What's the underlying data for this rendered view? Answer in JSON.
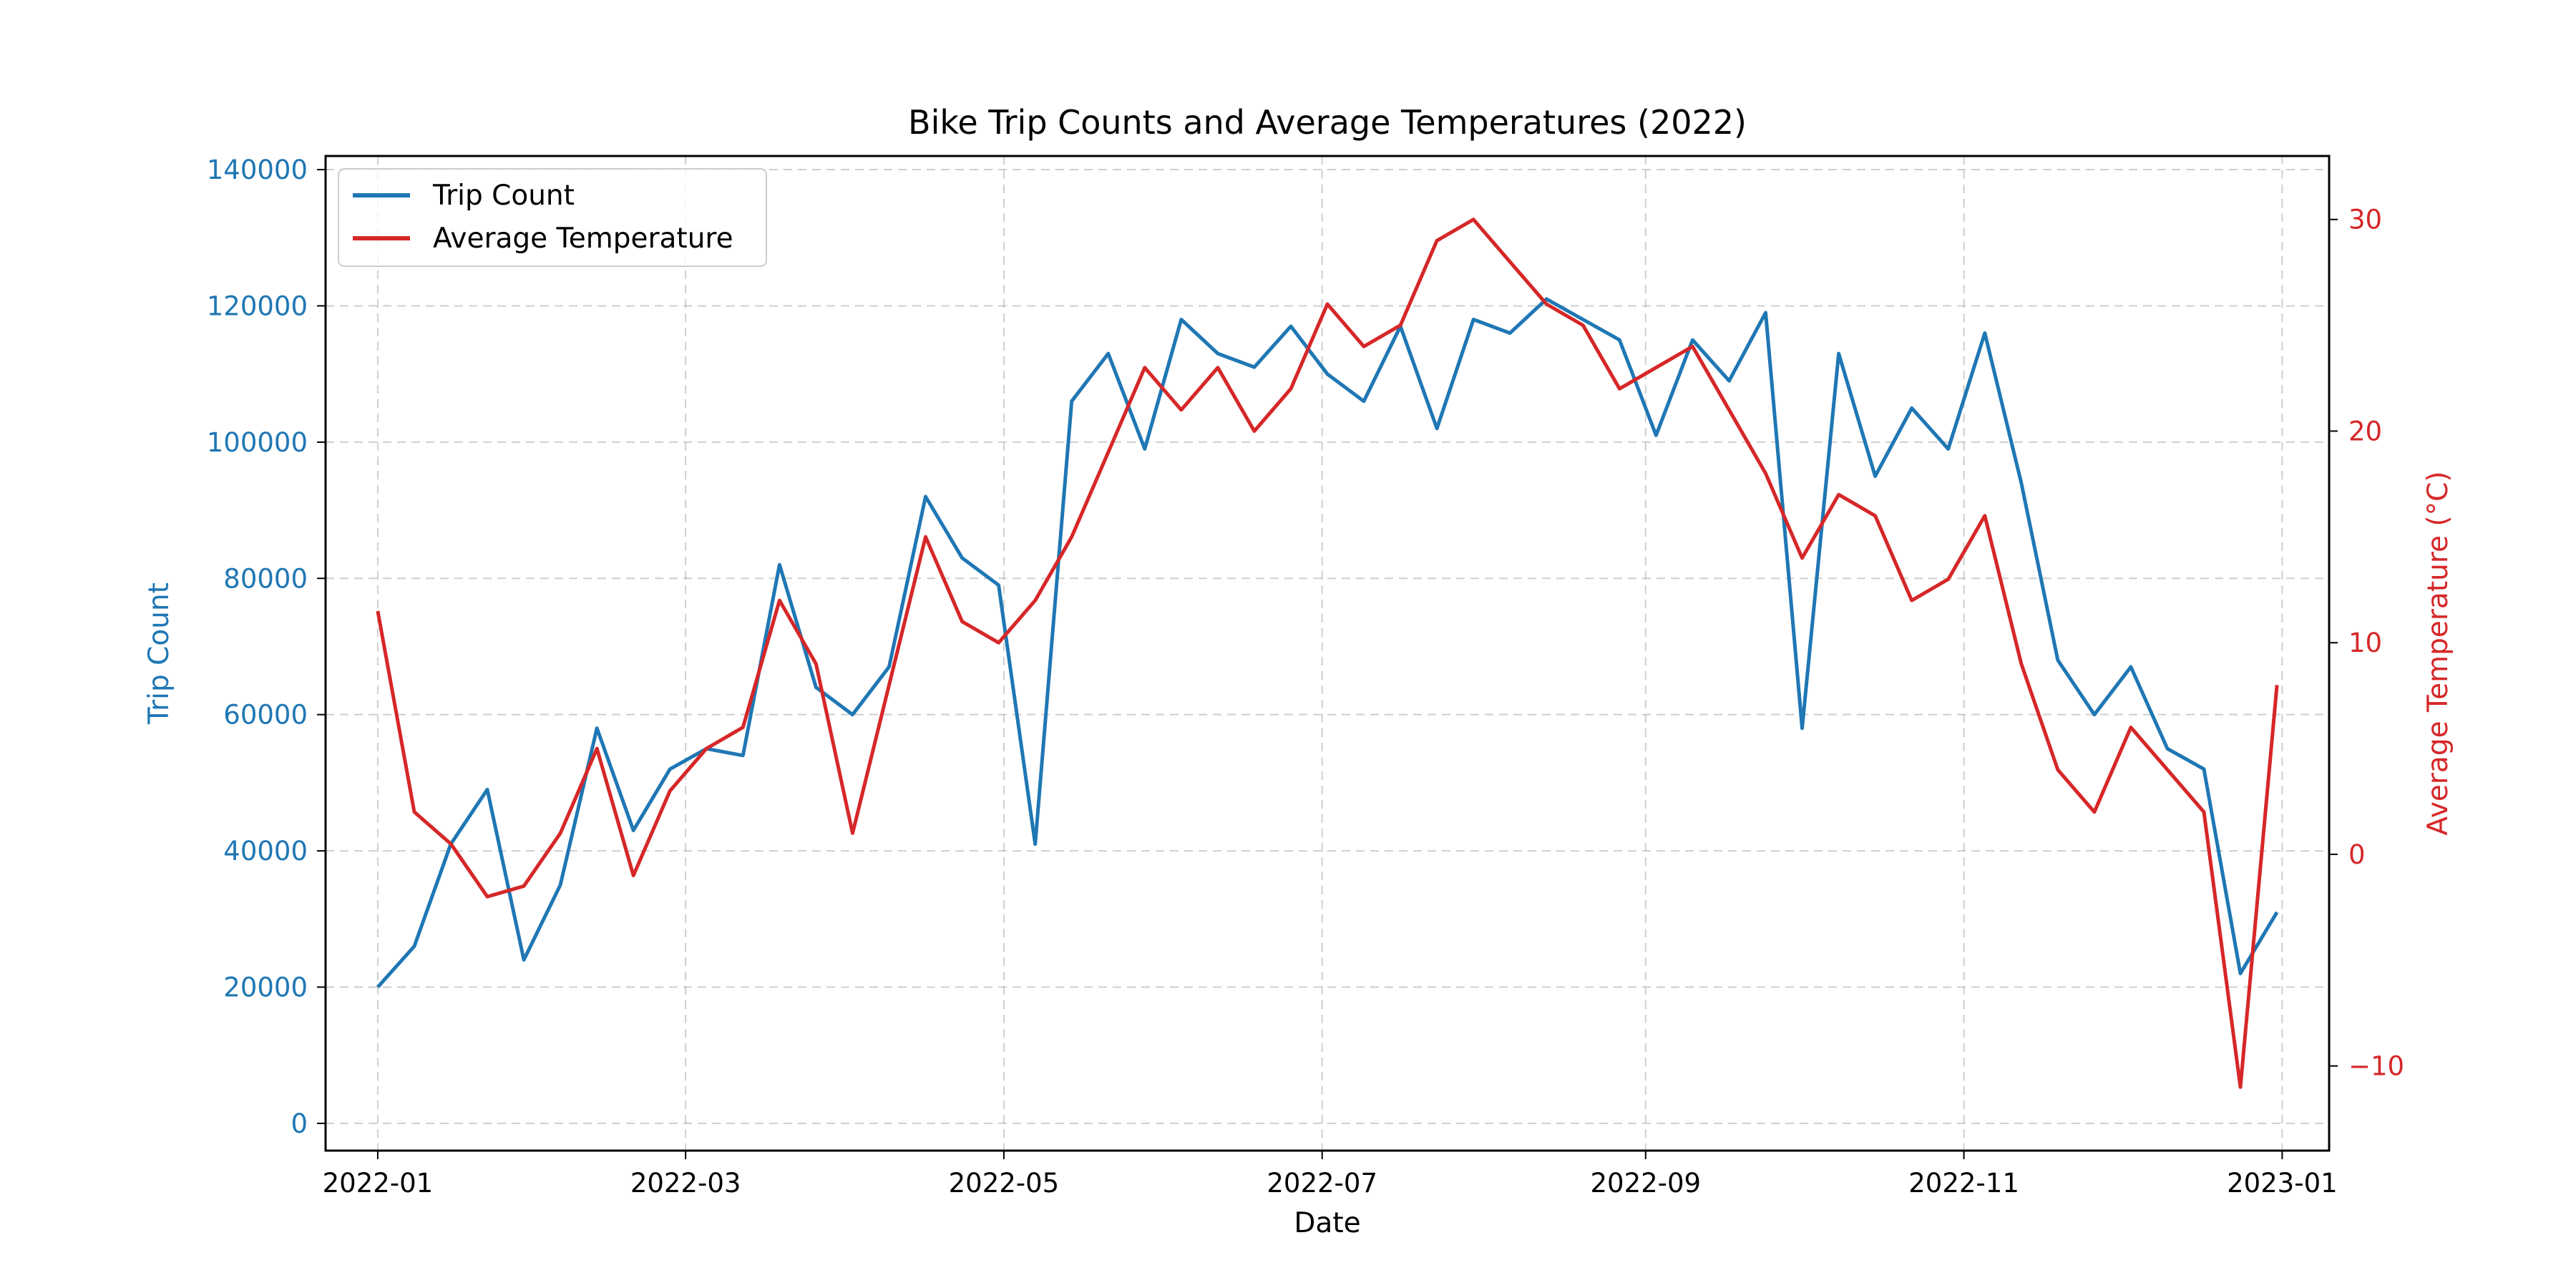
{
  "chart_data": {
    "type": "line",
    "title": "Bike Trip Counts and Average Temperatures (2022)",
    "xlabel": "Date",
    "ylabel_left": "Trip Count",
    "ylabel_right": "Average Temperature (°C)",
    "x_range": [
      "2021-12-22",
      "2023-01-10"
    ],
    "ylim_left": [
      -4000,
      142000
    ],
    "ylim_right": [
      -14,
      33
    ],
    "x_ticks": [
      "2022-01",
      "2022-03",
      "2022-05",
      "2022-07",
      "2022-09",
      "2022-11",
      "2023-01"
    ],
    "y_ticks_left": [
      "0",
      "20000",
      "40000",
      "60000",
      "80000",
      "100000",
      "120000",
      "140000"
    ],
    "y_ticks_right": [
      "−10",
      "0",
      "10",
      "20",
      "30"
    ],
    "grid": true,
    "legend_position": "top-left",
    "colors": {
      "trip": "#1f77b4",
      "temp": "#d62728"
    },
    "series": [
      {
        "name": "Trip Count",
        "axis": "left",
        "x": [
          "2022-01-01",
          "2022-01-08",
          "2022-01-15",
          "2022-01-22",
          "2022-01-29",
          "2022-02-05",
          "2022-02-12",
          "2022-02-19",
          "2022-02-26",
          "2022-03-05",
          "2022-03-12",
          "2022-03-19",
          "2022-03-26",
          "2022-04-02",
          "2022-04-09",
          "2022-04-16",
          "2022-04-23",
          "2022-04-30",
          "2022-05-07",
          "2022-05-14",
          "2022-05-21",
          "2022-05-28",
          "2022-06-04",
          "2022-06-11",
          "2022-06-18",
          "2022-06-25",
          "2022-07-02",
          "2022-07-09",
          "2022-07-16",
          "2022-07-23",
          "2022-07-30",
          "2022-08-06",
          "2022-08-13",
          "2022-08-20",
          "2022-08-27",
          "2022-09-03",
          "2022-09-10",
          "2022-09-17",
          "2022-09-24",
          "2022-10-01",
          "2022-10-08",
          "2022-10-15",
          "2022-10-22",
          "2022-10-29",
          "2022-11-05",
          "2022-11-12",
          "2022-11-19",
          "2022-11-26",
          "2022-12-03",
          "2022-12-10",
          "2022-12-17",
          "2022-12-24",
          "2022-12-31"
        ],
        "values": [
          20000,
          26000,
          41000,
          49000,
          24000,
          35000,
          58000,
          43000,
          52000,
          55000,
          54000,
          82000,
          64000,
          60000,
          67000,
          92000,
          83000,
          79000,
          41000,
          106000,
          113000,
          99000,
          118000,
          113000,
          111000,
          117000,
          110000,
          106000,
          117000,
          102000,
          118000,
          116000,
          121000,
          118000,
          115000,
          101000,
          115000,
          109000,
          119000,
          58000,
          113000,
          95000,
          105000,
          99000,
          116000,
          94000,
          68000,
          60000,
          67000,
          55000,
          52000,
          22000,
          31000
        ]
      },
      {
        "name": "Average Temperature",
        "axis": "right",
        "x": [
          "2022-01-01",
          "2022-01-08",
          "2022-01-15",
          "2022-01-22",
          "2022-01-29",
          "2022-02-05",
          "2022-02-12",
          "2022-02-19",
          "2022-02-26",
          "2022-03-05",
          "2022-03-12",
          "2022-03-19",
          "2022-03-26",
          "2022-04-02",
          "2022-04-09",
          "2022-04-16",
          "2022-04-23",
          "2022-04-30",
          "2022-05-07",
          "2022-05-14",
          "2022-05-21",
          "2022-05-28",
          "2022-06-04",
          "2022-06-11",
          "2022-06-18",
          "2022-06-25",
          "2022-07-02",
          "2022-07-09",
          "2022-07-16",
          "2022-07-23",
          "2022-07-30",
          "2022-08-06",
          "2022-08-13",
          "2022-08-20",
          "2022-08-27",
          "2022-09-03",
          "2022-09-10",
          "2022-09-17",
          "2022-09-24",
          "2022-10-01",
          "2022-10-08",
          "2022-10-15",
          "2022-10-22",
          "2022-10-29",
          "2022-11-05",
          "2022-11-12",
          "2022-11-19",
          "2022-11-26",
          "2022-12-03",
          "2022-12-10",
          "2022-12-17",
          "2022-12-24",
          "2022-12-31"
        ],
        "values": [
          11.5,
          2.0,
          0.5,
          -2.0,
          -1.5,
          1.0,
          5.0,
          -1.0,
          3.0,
          5.0,
          6.0,
          12.0,
          9.0,
          1.0,
          8.0,
          15.0,
          11.0,
          10.0,
          12.0,
          15.0,
          19.0,
          23.0,
          21.0,
          23.0,
          20.0,
          22.0,
          26.0,
          24.0,
          25.0,
          29.0,
          30.0,
          28.0,
          26.0,
          25.0,
          22.0,
          23.0,
          24.0,
          21.0,
          18.0,
          14.0,
          17.0,
          16.0,
          12.0,
          13.0,
          16.0,
          9.0,
          4.0,
          2.0,
          6.0,
          4.0,
          2.0,
          -11.0,
          8.0
        ]
      }
    ]
  }
}
